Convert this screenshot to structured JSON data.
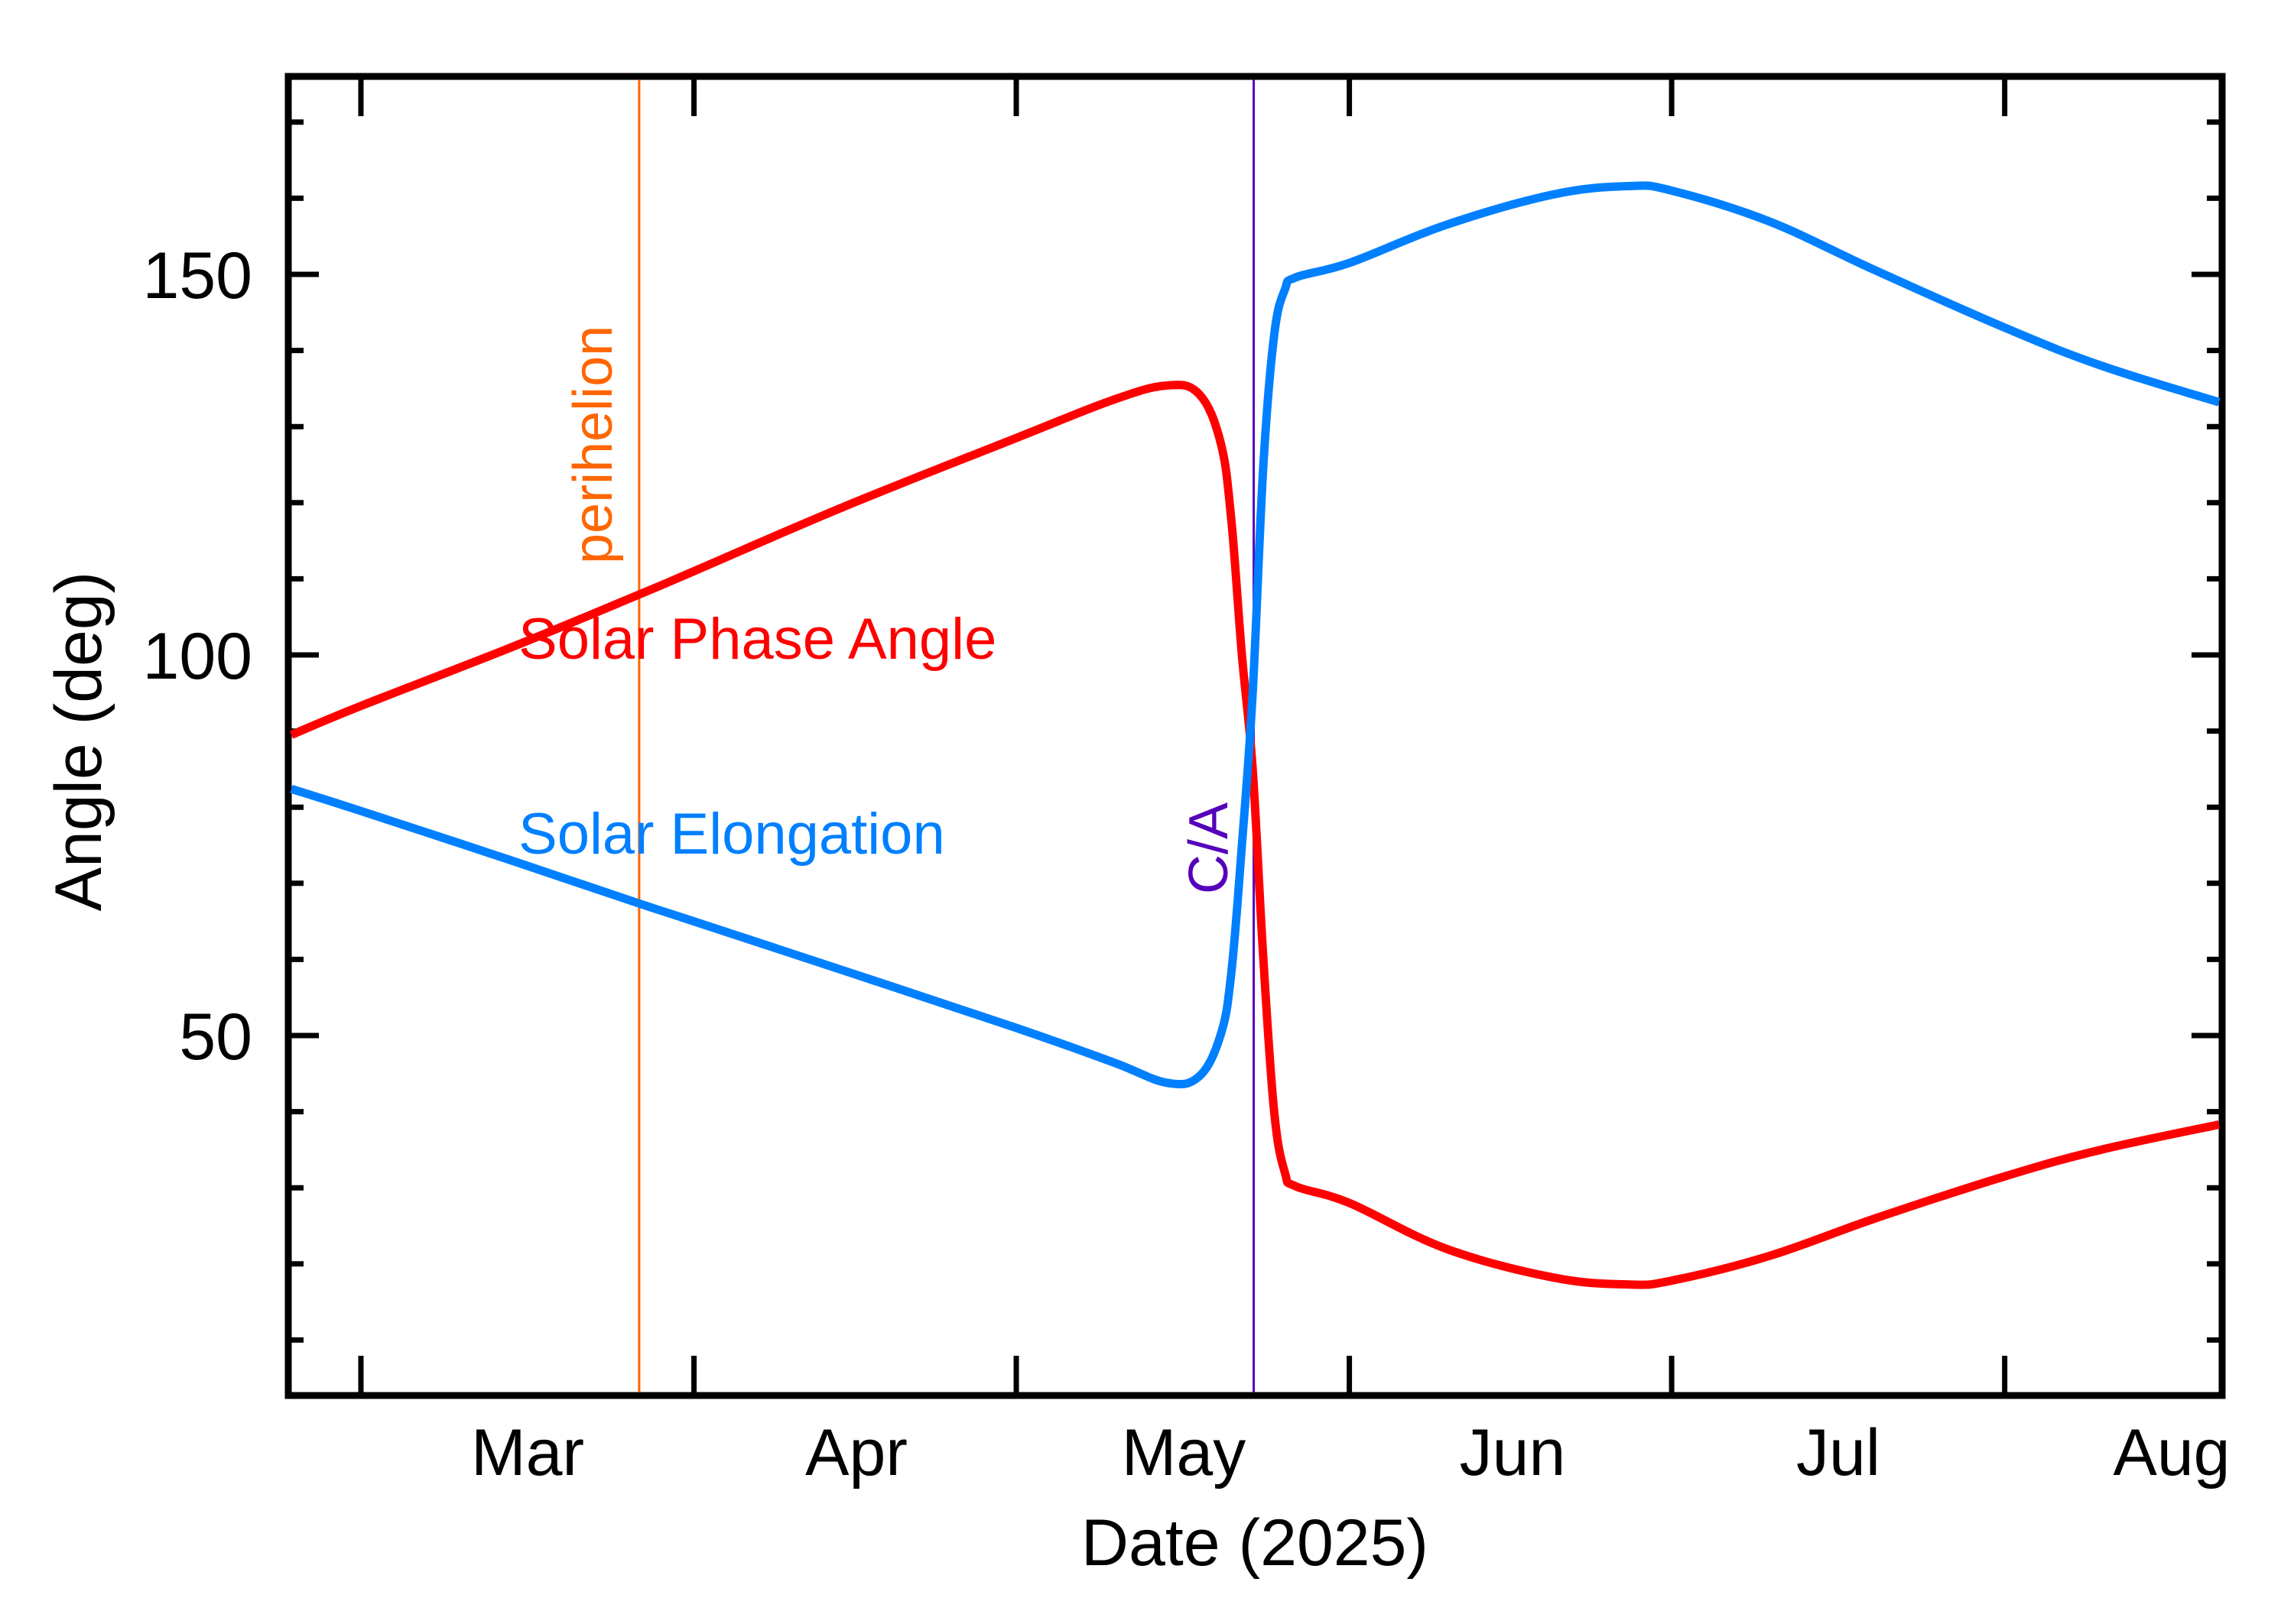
{
  "chart_data": {
    "type": "line",
    "title": "",
    "xlabel": "Date (2025)",
    "ylabel": "Angle (deg)",
    "x_unit": "days since 2025-03-01",
    "xlim": [
      -6.8,
      173.1
    ],
    "ylim": [
      3,
      176.2
    ],
    "x_ticks": [
      {
        "day": 0,
        "label": "Mar"
      },
      {
        "day": 31,
        "label": "Apr"
      },
      {
        "day": 61,
        "label": "May"
      },
      {
        "day": 92,
        "label": "Jun"
      },
      {
        "day": 122,
        "label": "Jul"
      },
      {
        "day": 153,
        "label": "Aug"
      }
    ],
    "x_tick_labels": [
      "Mar",
      "Apr",
      "May",
      "Jun",
      "Jul",
      "Aug"
    ],
    "y_major_ticks": [
      50,
      100,
      150
    ],
    "y_minor_step": 10,
    "grid": false,
    "legend_position": "inline labels",
    "series": [
      {
        "name": "Solar Phase Angle",
        "color": "#FF0000",
        "x": [
          -7,
          0,
          14,
          26,
          31,
          45,
          61,
          70,
          75,
          78,
          80,
          81,
          82,
          83,
          84,
          85,
          86,
          87,
          92,
          101,
          111,
          118,
          122,
          131,
          141,
          153,
          162,
          173
        ],
        "values": [
          89.5,
          93.3,
          101.0,
          108.0,
          111.0,
          119.5,
          128.5,
          133.5,
          135.4,
          134.3,
          128.0,
          118.0,
          100.0,
          85.0,
          60.0,
          40.0,
          32.0,
          30.2,
          28.0,
          22.0,
          18.2,
          17.3,
          17.8,
          21.0,
          26.0,
          31.5,
          35.0,
          38.3
        ]
      },
      {
        "name": "Solar Elongation",
        "color": "#0080FF",
        "x": [
          -7,
          0,
          14,
          26,
          31,
          45,
          61,
          70,
          75,
          78,
          80,
          81,
          82,
          83,
          84,
          85,
          86,
          87,
          92,
          101,
          111,
          118,
          122,
          131,
          141,
          153,
          162,
          173
        ],
        "values": [
          82.4,
          79.5,
          73.0,
          67.3,
          65.0,
          58.5,
          51.0,
          46.5,
          43.8,
          44.6,
          50.0,
          58.0,
          75.0,
          95.0,
          125.0,
          142.0,
          148.0,
          149.6,
          151.5,
          156.5,
          160.5,
          161.6,
          161.0,
          157.0,
          150.5,
          143.0,
          138.0,
          133.2
        ]
      }
    ],
    "annotations": [
      {
        "type": "vline",
        "label": "perihelion",
        "day": 25.9,
        "color": "#FF6600"
      },
      {
        "type": "vline",
        "label": "C/A",
        "day": 83.1,
        "color": "#5500BB"
      }
    ]
  },
  "labels": {
    "ylabel": "Angle (deg)",
    "xlabel": "Date (2025)",
    "phase_series": "Solar Phase Angle",
    "elong_series": "Solar Elongation",
    "perihelion": "perihelion",
    "ca": "C/A",
    "y150": "150",
    "y100": "100",
    "y50": "50",
    "mar": "Mar",
    "apr": "Apr",
    "may": "May",
    "jun": "Jun",
    "jul": "Jul",
    "aug": "Aug"
  },
  "colors": {
    "phase": "#FF0000",
    "elongation": "#0080FF",
    "perihelion": "#FF6600",
    "ca": "#5500BB",
    "axis": "#000000"
  }
}
